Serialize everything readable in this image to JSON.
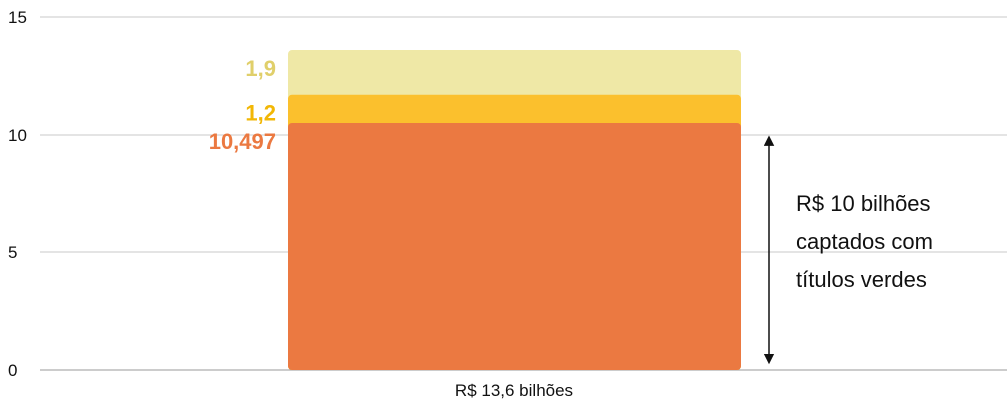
{
  "chart_data": {
    "type": "bar",
    "stacked": true,
    "categories": [
      "R$ 13,6 bilhões"
    ],
    "series": [
      {
        "values": [
          10.497
        ],
        "label": "10,497",
        "color": "#EB7941"
      },
      {
        "values": [
          1.2
        ],
        "label": "1,2",
        "color": "#FBC02D"
      },
      {
        "values": [
          1.9
        ],
        "label": "1,9",
        "color": "#EFE8A6"
      }
    ],
    "label_colors": [
      "#EB7941",
      "#F2B705",
      "#E0CF6A"
    ],
    "yticks": [
      "0",
      "5",
      "10",
      "15"
    ],
    "ylim": [
      0,
      15
    ],
    "grid": true,
    "legend": "none",
    "annotation": {
      "lines": [
        "R$ 10 bilhões",
        "captados com",
        "títulos verdes"
      ],
      "spans": [
        0,
        10
      ]
    }
  }
}
